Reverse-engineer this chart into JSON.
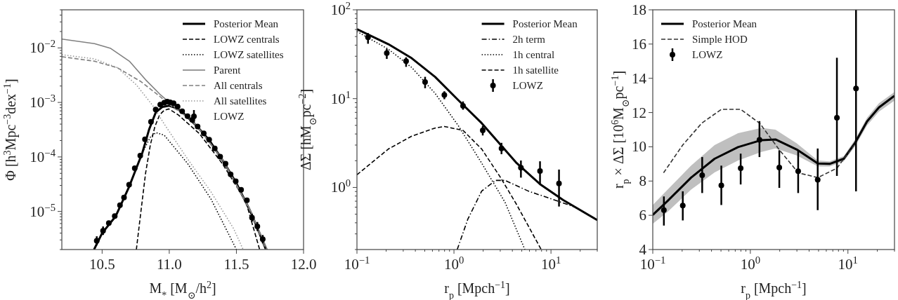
{
  "chart_data": [
    {
      "type": "line",
      "xlabel": "M$_{*}$ [M$_{⊙}$/h$^{2}$]",
      "ylabel": "Φ [h$^{3}$Mpc$^{−3}$dex$^{−1}$]",
      "log": "y",
      "legend": "top right",
      "xlim": [
        10.2,
        12.0
      ],
      "xticks": [
        10.5,
        {
          "value": 11,
          "label": "11.0"
        },
        11.5,
        {
          "value": 12,
          "label": "12.0"
        }
      ],
      "ylim": [
        2e-06,
        0.05
      ],
      "yticks": [
        {
          "value": 1e-05,
          "label": "10$^{−5}$"
        },
        {
          "value": 0.0001,
          "label": "10$^{−4}$"
        },
        {
          "value": 0.001,
          "label": "10$^{−3}$"
        },
        {
          "value": 0.01,
          "label": "10$^{−2}$"
        },
        {
          "value": 2e-06,
          "label": null
        },
        {
          "value": 3e-06,
          "label": null
        },
        {
          "value": 4e-06,
          "label": null
        },
        {
          "value": 5e-06,
          "label": null
        },
        {
          "value": 6e-06,
          "label": null
        },
        {
          "value": 7e-06,
          "label": null
        },
        {
          "value": 8e-06,
          "label": null
        },
        {
          "value": 9e-06,
          "label": null
        },
        {
          "value": 2e-05,
          "label": null
        },
        {
          "value": 3e-05,
          "label": null
        },
        {
          "value": 4e-05,
          "label": null
        },
        {
          "value": 5e-05,
          "label": null
        },
        {
          "value": 6e-05,
          "label": null
        },
        {
          "value": 7e-05,
          "label": null
        },
        {
          "value": 8e-05,
          "label": null
        },
        {
          "value": 9e-05,
          "label": null
        },
        {
          "value": 0.0002,
          "label": null
        },
        {
          "value": 0.0003,
          "label": null
        },
        {
          "value": 0.0004,
          "label": null
        },
        {
          "value": 0.0005,
          "label": null
        },
        {
          "value": 0.0006,
          "label": null
        },
        {
          "value": 0.0007,
          "label": null
        },
        {
          "value": 0.0008,
          "label": null
        },
        {
          "value": 0.0009,
          "label": null
        },
        {
          "value": 0.002,
          "label": null
        },
        {
          "value": 0.003,
          "label": null
        },
        {
          "value": 0.004,
          "label": null
        },
        {
          "value": 0.005,
          "label": null
        },
        {
          "value": 0.006,
          "label": null
        },
        {
          "value": 0.007,
          "label": null
        },
        {
          "value": 0.008,
          "label": null
        },
        {
          "value": 0.009,
          "label": null
        },
        {
          "value": 0.02,
          "label": null
        },
        {
          "value": 0.03,
          "label": null
        },
        {
          "value": 0.04,
          "label": null
        },
        {
          "value": 0.05,
          "label": null
        }
      ],
      "series": [
        {
          "name": "Posterior Mean",
          "color": "#000000",
          "line_style": "solid",
          "x": [
            10.44,
            10.5,
            10.6,
            10.7,
            10.8,
            10.85,
            10.9,
            10.95,
            11.0,
            11.05,
            11.1,
            11.2,
            11.3,
            11.4,
            11.5,
            11.6,
            11.65,
            11.72
          ],
          "values": [
            2e-06,
            4e-06,
            8.1e-06,
            2.8e-05,
            0.00012,
            0.00032,
            0.00066,
            0.00083,
            0.00087,
            0.00079,
            0.00065,
            0.00038,
            0.0002,
            8.5e-05,
            3.3e-05,
            1.05e-05,
            5.4e-06,
            2e-06
          ]
        },
        {
          "name": "LOWZ centrals",
          "color": "#000000",
          "line_style": "dashed",
          "x": [
            10.755,
            10.79,
            10.824,
            10.859,
            10.893,
            10.928,
            10.963,
            10.997,
            11.067,
            11.223,
            11.396,
            11.569,
            11.673
          ],
          "values": [
            2e-06,
            1.05e-05,
            5.1e-05,
            0.000166,
            0.00036,
            0.00059,
            0.00072,
            0.00076,
            0.00059,
            0.00027,
            7.5e-05,
            1.55e-05,
            2e-06
          ]
        },
        {
          "name": "LOWZ satellites",
          "color": "#000000",
          "line_style": "dotted",
          "x": [
            10.8,
            10.859,
            10.9,
            10.963,
            11.136,
            11.31,
            11.5
          ],
          "values": [
            0.00012,
            0.00023,
            0.00028,
            0.00025,
            7.6e-05,
            1.7e-05,
            2e-06
          ]
        },
        {
          "name": "Parent",
          "color": "#808080",
          "line_style": "solid",
          "x": [
            10.2,
            10.443,
            10.564,
            10.703,
            10.824,
            10.928,
            11.049,
            11.2,
            11.4,
            11.6,
            11.73
          ],
          "values": [
            0.0145,
            0.012,
            0.0098,
            0.0057,
            0.0026,
            0.00143,
            0.00079,
            0.00039,
            8.8e-05,
            1.1e-05,
            2e-06
          ]
        },
        {
          "name": "All centrals",
          "color": "#808080",
          "line_style": "dashed",
          "x": [
            10.2,
            10.443,
            10.616,
            10.79,
            10.928,
            11.032,
            11.1,
            11.2,
            11.4,
            11.6,
            11.72
          ],
          "values": [
            0.0069,
            0.0057,
            0.0043,
            0.0024,
            0.0013,
            0.00079,
            0.00064,
            0.00038,
            8.5e-05,
            1.05e-05,
            2e-06
          ]
        },
        {
          "name": "All satellites",
          "color": "#999999",
          "line_style": "dotted",
          "x": [
            10.2,
            10.443,
            10.616,
            10.755,
            10.876,
            10.963,
            11.136,
            11.31,
            11.48,
            11.55
          ],
          "values": [
            0.0075,
            0.0063,
            0.0043,
            0.0021,
            0.00088,
            0.0004,
            9.2e-05,
            2.3e-05,
            4.8e-06,
            2e-06
          ]
        },
        {
          "name": "LOWZ",
          "type": "scatter",
          "color": "#000000",
          "marker": "circle",
          "x": [
            10.46,
            10.507,
            10.55,
            10.594,
            10.633,
            10.663,
            10.701,
            10.743,
            10.784,
            10.819,
            10.864,
            10.899,
            10.933,
            10.963,
            10.985,
            11.006,
            11.032,
            11.062,
            11.096,
            11.136,
            11.171,
            11.211,
            11.257,
            11.297,
            11.339,
            11.379,
            11.419,
            11.457,
            11.495,
            11.535,
            11.578,
            11.616,
            11.656,
            11.696
          ],
          "values": [
            2.9e-06,
            4.4e-06,
            6.1e-06,
            8.2e-06,
            1.3e-05,
            1.8e-05,
            3.1e-05,
            6.2e-05,
            0.000106,
            0.00021,
            0.00044,
            0.00074,
            0.00091,
            0.00099,
            0.00103,
            0.001,
            0.00097,
            0.00084,
            0.00069,
            0.00056,
            0.00048,
            0.00036,
            0.00027,
            0.000207,
            0.000143,
            0.000101,
            7.5e-05,
            4.8e-05,
            3.6e-05,
            2.5e-05,
            1.6e-05,
            7.7e-06,
            5.3e-06,
            3.1e-06
          ],
          "errors": [
            [
              2.4e-06,
              3.5e-06
            ],
            [
              3.7e-06,
              5.3e-06
            ],
            null,
            null,
            null,
            null,
            null,
            null,
            null,
            null,
            null,
            null,
            null,
            null,
            null,
            null,
            null,
            null,
            null,
            null,
            null,
            null,
            null,
            null,
            null,
            null,
            null,
            null,
            null,
            null,
            null,
            [
              6.5e-06,
              9.1e-06
            ],
            [
              4.4e-06,
              6.4e-06
            ],
            [
              2.6e-06,
              3.7e-06
            ]
          ]
        }
      ]
    },
    {
      "type": "line",
      "xlabel": "r$_{p}$ [Mpch$^{−1}$]",
      "ylabel": "ΔΣ [hM$_{⊙}$pc$^{−2}$]",
      "log": "xy",
      "legend": "top right",
      "xlim": [
        0.1,
        30
      ],
      "xticks": [
        {
          "value": 0.1,
          "label": "10$^{−1}$"
        },
        {
          "value": 1,
          "label": "10$^{0}$"
        },
        {
          "value": 10,
          "label": "10$^{1}$"
        },
        {
          "value": 0.2,
          "label": null
        },
        {
          "value": 0.3,
          "label": null
        },
        {
          "value": 0.4,
          "label": null
        },
        {
          "value": 0.5,
          "label": null
        },
        {
          "value": 0.6,
          "label": null
        },
        {
          "value": 0.7,
          "label": null
        },
        {
          "value": 0.8,
          "label": null
        },
        {
          "value": 0.9,
          "label": null
        },
        {
          "value": 2,
          "label": null
        },
        {
          "value": 3,
          "label": null
        },
        {
          "value": 4,
          "label": null
        },
        {
          "value": 5,
          "label": null
        },
        {
          "value": 6,
          "label": null
        },
        {
          "value": 7,
          "label": null
        },
        {
          "value": 8,
          "label": null
        },
        {
          "value": 9,
          "label": null
        },
        {
          "value": 20,
          "label": null
        },
        {
          "value": 30,
          "label": null
        }
      ],
      "ylim": [
        0.2,
        100
      ],
      "yticks": [
        {
          "value": 1,
          "label": "10$^{0}$"
        },
        {
          "value": 10,
          "label": "10$^{1}$"
        },
        {
          "value": 100,
          "label": "10$^{2}$"
        },
        {
          "value": 0.2,
          "label": null
        },
        {
          "value": 0.3,
          "label": null
        },
        {
          "value": 0.4,
          "label": null
        },
        {
          "value": 0.5,
          "label": null
        },
        {
          "value": 0.6,
          "label": null
        },
        {
          "value": 0.7,
          "label": null
        },
        {
          "value": 0.8,
          "label": null
        },
        {
          "value": 0.9,
          "label": null
        },
        {
          "value": 2,
          "label": null
        },
        {
          "value": 3,
          "label": null
        },
        {
          "value": 4,
          "label": null
        },
        {
          "value": 5,
          "label": null
        },
        {
          "value": 6,
          "label": null
        },
        {
          "value": 7,
          "label": null
        },
        {
          "value": 8,
          "label": null
        },
        {
          "value": 9,
          "label": null
        },
        {
          "value": 20,
          "label": null
        },
        {
          "value": 30,
          "label": null
        },
        {
          "value": 40,
          "label": null
        },
        {
          "value": 50,
          "label": null
        },
        {
          "value": 60,
          "label": null
        },
        {
          "value": 70,
          "label": null
        },
        {
          "value": 80,
          "label": null
        },
        {
          "value": 90,
          "label": null
        }
      ],
      "series": [
        {
          "name": "Posterior Mean",
          "color": "#000000",
          "line_style": "solid",
          "x": [
            0.1,
            0.211,
            0.367,
            0.638,
            1.11,
            1.93,
            3.0,
            4.43,
            7.71,
            13.4,
            30
          ],
          "values": [
            60.5,
            41,
            28.5,
            17.6,
            9.6,
            5.3,
            3.05,
            1.88,
            1.09,
            0.72,
            0.43
          ]
        },
        {
          "name": "2h term",
          "color": "#000000",
          "line_style": "dashdot",
          "x": [
            1.08,
            1.39,
            1.93,
            2.69,
            3.36,
            5.85,
            10.2,
            17.7,
            30
          ],
          "values": [
            0.2,
            0.44,
            0.91,
            1.2,
            1.2,
            0.91,
            0.74,
            0.6,
            0.43
          ]
        },
        {
          "name": "1h central",
          "color": "#000000",
          "line_style": "dotted",
          "x": [
            0.1,
            0.211,
            0.367,
            0.638,
            1.11,
            1.93,
            3.36,
            5.38
          ],
          "values": [
            57,
            36,
            22.4,
            11.5,
            4.95,
            1.88,
            0.68,
            0.2
          ]
        },
        {
          "name": "1h satellite",
          "color": "#000000",
          "line_style": "dashed",
          "x": [
            0.1,
            0.211,
            0.367,
            0.638,
            0.796,
            1.24,
            1.93,
            3.0,
            4.43,
            7.93
          ],
          "values": [
            1.39,
            2.71,
            3.78,
            4.66,
            4.86,
            4.39,
            2.71,
            1.31,
            0.64,
            0.2
          ]
        },
        {
          "name": "LOWZ",
          "type": "scatter",
          "color": "#000000",
          "marker": "circle",
          "x": [
            0.13,
            0.203,
            0.321,
            0.504,
            0.796,
            1.24,
            1.98,
            3.09,
            4.9,
            7.71,
            12.1
          ],
          "values": [
            49,
            32.5,
            26.4,
            15.4,
            11.0,
            8.3,
            4.4,
            2.75,
            1.67,
            1.53,
            1.11
          ],
          "errors": [
            [
              41.5,
              54.7
            ],
            [
              28.0,
              36.4
            ],
            [
              22.8,
              29.2
            ],
            [
              13.1,
              17.6
            ],
            [
              9.85,
              12.1
            ],
            [
              7.5,
              9.3
            ],
            [
              3.85,
              4.93
            ],
            [
              2.37,
              3.18
            ],
            [
              1.29,
              2.01
            ],
            [
              1.08,
              1.97
            ],
            [
              0.61,
              1.59
            ]
          ]
        }
      ]
    },
    {
      "type": "line",
      "xlabel": "r$_{p}$ [Mpch$^{−1}$]",
      "ylabel": "r$_{p}$ × ΔΣ [10$^{6}$M$_{⊙}$pc$^{−1}$]",
      "log": "x",
      "legend": "top left",
      "xlim": [
        0.1,
        30
      ],
      "xticks": [
        {
          "value": 0.1,
          "label": "10$^{−1}$"
        },
        {
          "value": 1,
          "label": "10$^{0}$"
        },
        {
          "value": 10,
          "label": "10$^{1}$"
        },
        {
          "value": 0.2,
          "label": null
        },
        {
          "value": 0.3,
          "label": null
        },
        {
          "value": 0.4,
          "label": null
        },
        {
          "value": 0.5,
          "label": null
        },
        {
          "value": 0.6,
          "label": null
        },
        {
          "value": 0.7,
          "label": null
        },
        {
          "value": 0.8,
          "label": null
        },
        {
          "value": 0.9,
          "label": null
        },
        {
          "value": 2,
          "label": null
        },
        {
          "value": 3,
          "label": null
        },
        {
          "value": 4,
          "label": null
        },
        {
          "value": 5,
          "label": null
        },
        {
          "value": 6,
          "label": null
        },
        {
          "value": 7,
          "label": null
        },
        {
          "value": 8,
          "label": null
        },
        {
          "value": 9,
          "label": null
        },
        {
          "value": 20,
          "label": null
        },
        {
          "value": 30,
          "label": null
        }
      ],
      "ylim": [
        4,
        18
      ],
      "yticks": [
        4,
        6,
        8,
        10,
        12,
        14,
        16,
        18
      ],
      "series": [
        {
          "name": "Posterior Mean",
          "color": "#000000",
          "line_style": "solid",
          "x": [
            0.1,
            0.142,
            0.247,
            0.43,
            0.748,
            1.3,
            1.81,
            2.99,
            4.92,
            6.49,
            9.06,
            11.9,
            15.7,
            20.8,
            30
          ],
          "values": [
            6.02,
            6.84,
            8.2,
            9.3,
            9.98,
            10.39,
            10.43,
            9.84,
            9.02,
            9.0,
            9.3,
            10.25,
            11.48,
            12.3,
            12.98
          ],
          "lower": [
            5.5,
            6.2,
            7.5,
            8.5,
            9.2,
            9.7,
            9.9,
            9.5,
            8.85,
            8.85,
            9.15,
            10.05,
            11.25,
            12.05,
            12.7
          ],
          "upper": [
            6.6,
            7.5,
            8.9,
            10.1,
            10.8,
            11.1,
            11.0,
            10.2,
            9.2,
            9.15,
            9.45,
            10.45,
            11.7,
            12.55,
            13.2
          ]
        },
        {
          "name": "Simple HOD",
          "color": "#333333",
          "line_style": "dashed",
          "x": [
            0.129,
            0.203,
            0.318,
            0.505,
            0.794,
            1.25,
            1.97,
            3.1,
            4.91,
            7.71,
            12.1
          ],
          "values": [
            8.48,
            10.11,
            11.38,
            12.19,
            12.19,
            11.37,
            9.84,
            8.48,
            8.2,
            8.75,
            10.25
          ]
        },
        {
          "name": "LOWZ",
          "type": "scatter",
          "color": "#000000",
          "marker": "circle",
          "x": [
            0.13,
            0.203,
            0.321,
            0.504,
            0.796,
            1.24,
            1.98,
            3.09,
            4.9,
            7.71,
            12.1
          ],
          "values": [
            6.3,
            6.57,
            8.34,
            7.75,
            8.75,
            10.41,
            8.79,
            8.57,
            8.07,
            11.7,
            13.4
          ],
          "errors": [
            [
              5.4,
              7.1
            ],
            [
              5.7,
              7.4
            ],
            [
              7.3,
              9.4
            ],
            [
              6.6,
              8.9
            ],
            [
              7.8,
              9.6
            ],
            [
              9.4,
              11.5
            ],
            [
              7.6,
              9.8
            ],
            [
              7.3,
              9.8
            ],
            [
              6.3,
              9.9
            ],
            [
              8.3,
              15.2
            ],
            [
              7.4,
              18
            ]
          ]
        }
      ]
    }
  ]
}
